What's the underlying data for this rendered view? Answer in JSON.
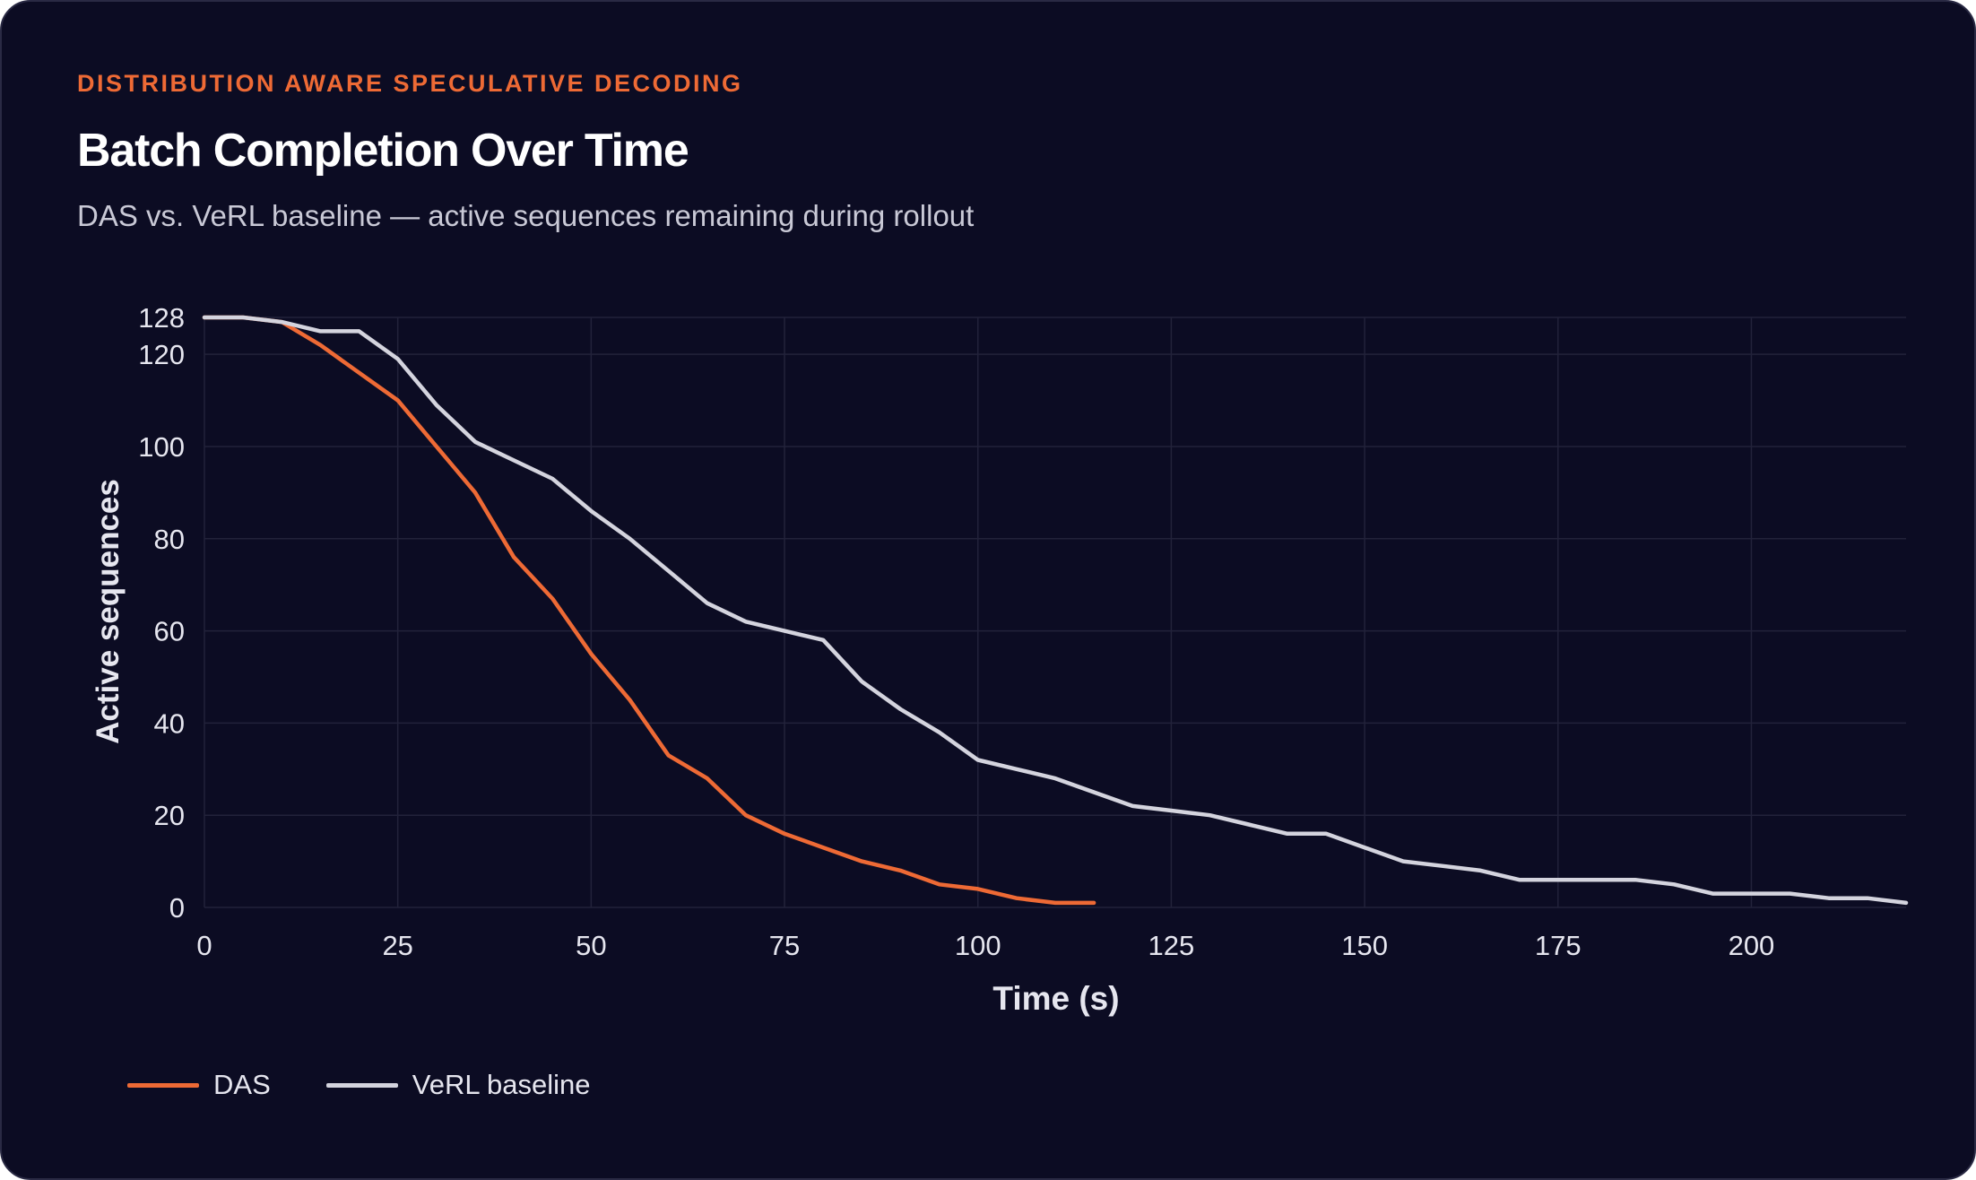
{
  "header": {
    "eyebrow": "DISTRIBUTION AWARE SPECULATIVE DECODING",
    "title": "Batch Completion Over Time",
    "subtitle": "DAS vs. VeRL baseline — active sequences remaining during rollout"
  },
  "colors": {
    "background": "#0c0c23",
    "accent": "#ee6a35",
    "baseline": "#d4d4de",
    "grid": "#22223a",
    "text": "#e6e6ef"
  },
  "chart_data": {
    "type": "line",
    "title": "Batch Completion Over Time",
    "xlabel": "Time (s)",
    "ylabel": "Active sequences",
    "xlim": [
      0,
      220
    ],
    "ylim": [
      0,
      128
    ],
    "x_ticks": [
      0,
      25,
      50,
      75,
      100,
      125,
      150,
      175,
      200
    ],
    "y_ticks": [
      0,
      20,
      40,
      60,
      80,
      100,
      120,
      128
    ],
    "grid": true,
    "legend_position": "bottom-left",
    "series": [
      {
        "name": "DAS",
        "color": "#ee6a35",
        "x": [
          0,
          5,
          10,
          15,
          20,
          25,
          30,
          35,
          40,
          45,
          50,
          55,
          60,
          65,
          70,
          75,
          80,
          85,
          90,
          95,
          100,
          105,
          110,
          115
        ],
        "y": [
          128,
          128,
          127,
          122,
          116,
          110,
          100,
          90,
          76,
          67,
          55,
          45,
          33,
          28,
          20,
          16,
          13,
          10,
          8,
          5,
          4,
          2,
          1,
          1
        ]
      },
      {
        "name": "VeRL baseline",
        "color": "#d4d4de",
        "x": [
          0,
          5,
          10,
          15,
          20,
          25,
          30,
          35,
          40,
          45,
          50,
          55,
          60,
          65,
          70,
          75,
          80,
          85,
          90,
          95,
          100,
          105,
          110,
          115,
          120,
          125,
          130,
          135,
          140,
          145,
          150,
          155,
          160,
          165,
          170,
          175,
          180,
          185,
          190,
          195,
          200,
          205,
          210,
          215,
          220
        ],
        "y": [
          128,
          128,
          127,
          125,
          125,
          119,
          109,
          101,
          97,
          93,
          86,
          80,
          73,
          66,
          62,
          60,
          58,
          49,
          43,
          38,
          32,
          30,
          28,
          25,
          22,
          21,
          20,
          18,
          16,
          16,
          13,
          10,
          9,
          8,
          6,
          6,
          6,
          6,
          5,
          3,
          3,
          3,
          2,
          2,
          1
        ]
      }
    ]
  }
}
